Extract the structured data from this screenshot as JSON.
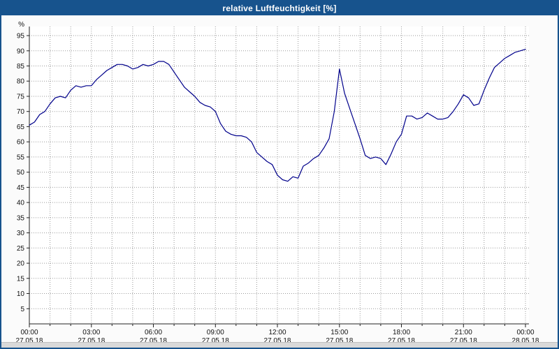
{
  "window": {
    "title": "relative Luftfeuchtigkeit [%]"
  },
  "colors": {
    "titlebar_bg": "#17538d",
    "titlebar_text": "#ffffff",
    "window_border": "#17538d",
    "outer_bg": "#fbfbfb",
    "plot_bg": "#ffffff",
    "grid": "#9a9a9a",
    "axis": "#222222",
    "label": "#111111",
    "line": "#00008b",
    "bottom_strip": "#d9d9d9"
  },
  "chart_data": {
    "type": "line",
    "title": "relative Luftfeuchtigkeit [%]",
    "xlabel": "",
    "ylabel": "%",
    "ylim": [
      0,
      98
    ],
    "x_unit": "hours",
    "x_range_hours": [
      0,
      24
    ],
    "grid": "dotted, hourly vertical and every 5% horizontal",
    "legend": "none",
    "yticks": [
      5,
      10,
      15,
      20,
      25,
      30,
      35,
      40,
      45,
      50,
      55,
      60,
      65,
      70,
      75,
      80,
      85,
      90,
      95
    ],
    "x_ticks": [
      {
        "hour": 0,
        "time": "00:00",
        "date": "27.05.18"
      },
      {
        "hour": 3,
        "time": "03:00",
        "date": "27.05.18"
      },
      {
        "hour": 6,
        "time": "06:00",
        "date": "27.05.18"
      },
      {
        "hour": 9,
        "time": "09:00",
        "date": "27.05.18"
      },
      {
        "hour": 12,
        "time": "12:00",
        "date": "27.05.18"
      },
      {
        "hour": 15,
        "time": "15:00",
        "date": "27.05.18"
      },
      {
        "hour": 18,
        "time": "18:00",
        "date": "27.05.18"
      },
      {
        "hour": 21,
        "time": "21:00",
        "date": "27.05.18"
      },
      {
        "hour": 24,
        "time": "00:00",
        "date": "28.05.18"
      }
    ],
    "series": [
      {
        "name": "relative Luftfeuchtigkeit [%]",
        "color": "#00008b",
        "points": [
          [
            0,
            65.5
          ],
          [
            0.25,
            66.5
          ],
          [
            0.5,
            69
          ],
          [
            0.75,
            70
          ],
          [
            1,
            72.5
          ],
          [
            1.25,
            74.5
          ],
          [
            1.5,
            75
          ],
          [
            1.75,
            74.5
          ],
          [
            2,
            77
          ],
          [
            2.25,
            78.5
          ],
          [
            2.5,
            78
          ],
          [
            2.75,
            78.5
          ],
          [
            3,
            78.5
          ],
          [
            3.25,
            80.5
          ],
          [
            3.5,
            82
          ],
          [
            3.75,
            83.5
          ],
          [
            4,
            84.5
          ],
          [
            4.25,
            85.5
          ],
          [
            4.5,
            85.5
          ],
          [
            4.75,
            85
          ],
          [
            5,
            84
          ],
          [
            5.25,
            84.5
          ],
          [
            5.5,
            85.5
          ],
          [
            5.75,
            85
          ],
          [
            6,
            85.5
          ],
          [
            6.25,
            86.5
          ],
          [
            6.5,
            86.5
          ],
          [
            6.75,
            85.5
          ],
          [
            7,
            83
          ],
          [
            7.25,
            80.5
          ],
          [
            7.5,
            78
          ],
          [
            7.75,
            76.5
          ],
          [
            8,
            75
          ],
          [
            8.25,
            73
          ],
          [
            8.5,
            72
          ],
          [
            8.75,
            71.5
          ],
          [
            9,
            70
          ],
          [
            9.25,
            66
          ],
          [
            9.5,
            63.5
          ],
          [
            9.75,
            62.5
          ],
          [
            10,
            62
          ],
          [
            10.25,
            62
          ],
          [
            10.5,
            61.5
          ],
          [
            10.75,
            60
          ],
          [
            11,
            56.5
          ],
          [
            11.25,
            55
          ],
          [
            11.5,
            53.5
          ],
          [
            11.75,
            52.5
          ],
          [
            12,
            49
          ],
          [
            12.25,
            47.5
          ],
          [
            12.5,
            47
          ],
          [
            12.75,
            48.5
          ],
          [
            13,
            48
          ],
          [
            13.25,
            52
          ],
          [
            13.5,
            53
          ],
          [
            13.75,
            54.5
          ],
          [
            14,
            55.5
          ],
          [
            14.25,
            58
          ],
          [
            14.5,
            61
          ],
          [
            14.75,
            70
          ],
          [
            15,
            84
          ],
          [
            15.25,
            76
          ],
          [
            15.5,
            71
          ],
          [
            15.75,
            66
          ],
          [
            16,
            61
          ],
          [
            16.25,
            55.5
          ],
          [
            16.5,
            54.5
          ],
          [
            16.75,
            55
          ],
          [
            17,
            54.5
          ],
          [
            17.25,
            52.5
          ],
          [
            17.5,
            56
          ],
          [
            17.75,
            60
          ],
          [
            18,
            62.5
          ],
          [
            18.25,
            68.5
          ],
          [
            18.5,
            68.5
          ],
          [
            18.75,
            67.5
          ],
          [
            19,
            68
          ],
          [
            19.25,
            69.5
          ],
          [
            19.5,
            68.5
          ],
          [
            19.75,
            67.5
          ],
          [
            20,
            67.5
          ],
          [
            20.25,
            68
          ],
          [
            20.5,
            70
          ],
          [
            20.75,
            72.5
          ],
          [
            21,
            75.5
          ],
          [
            21.25,
            74.5
          ],
          [
            21.5,
            72
          ],
          [
            21.75,
            72.5
          ],
          [
            22,
            77
          ],
          [
            22.25,
            81
          ],
          [
            22.5,
            84.5
          ],
          [
            22.75,
            86
          ],
          [
            23,
            87.5
          ],
          [
            23.25,
            88.5
          ],
          [
            23.5,
            89.5
          ],
          [
            23.75,
            90
          ],
          [
            24,
            90.5
          ]
        ]
      }
    ]
  }
}
